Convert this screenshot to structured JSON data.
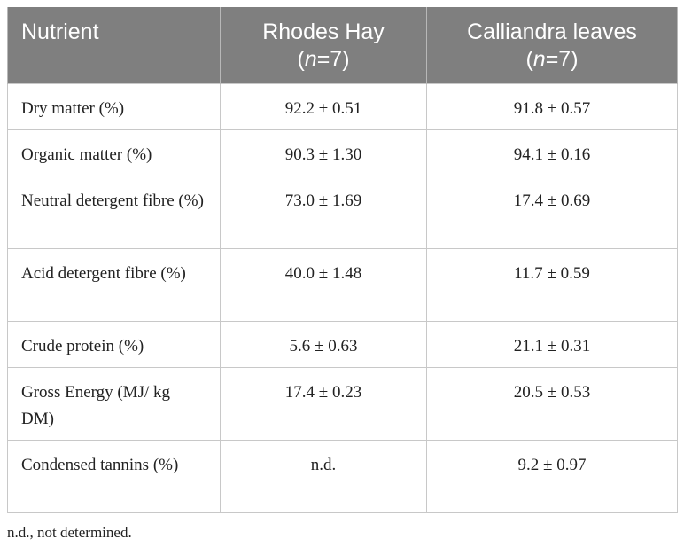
{
  "table": {
    "headers": {
      "nutrient": "Nutrient",
      "rhodes_prefix": "Rhodes Hay (",
      "calliandra_prefix": "Calliandra leaves (",
      "n_symbol": "n",
      "n_value": "=7)"
    },
    "rows": [
      {
        "nutrient": "Dry matter (%)",
        "rhodes": "92.2 ± 0.51",
        "calliandra": "91.8 ± 0.57"
      },
      {
        "nutrient": "Organic matter (%)",
        "rhodes": "90.3 ± 1.30",
        "calliandra": "94.1 ± 0.16"
      },
      {
        "nutrient": "Neutral detergent fibre (%)",
        "rhodes": "73.0 ± 1.69",
        "calliandra": "17.4 ± 0.69"
      },
      {
        "nutrient": "Acid detergent fibre (%)",
        "rhodes": "40.0 ± 1.48",
        "calliandra": "11.7 ± 0.59"
      },
      {
        "nutrient": "Crude protein (%)",
        "rhodes": "5.6 ± 0.63",
        "calliandra": "21.1 ± 0.31"
      },
      {
        "nutrient": "Gross Energy (MJ/ kg DM)",
        "rhodes": "17.4 ± 0.23",
        "calliandra": "20.5 ± 0.53"
      },
      {
        "nutrient": "Condensed tannins (%)",
        "rhodes": "n.d.",
        "calliandra": "9.2 ± 0.97"
      }
    ]
  },
  "footnote": "n.d., not determined."
}
